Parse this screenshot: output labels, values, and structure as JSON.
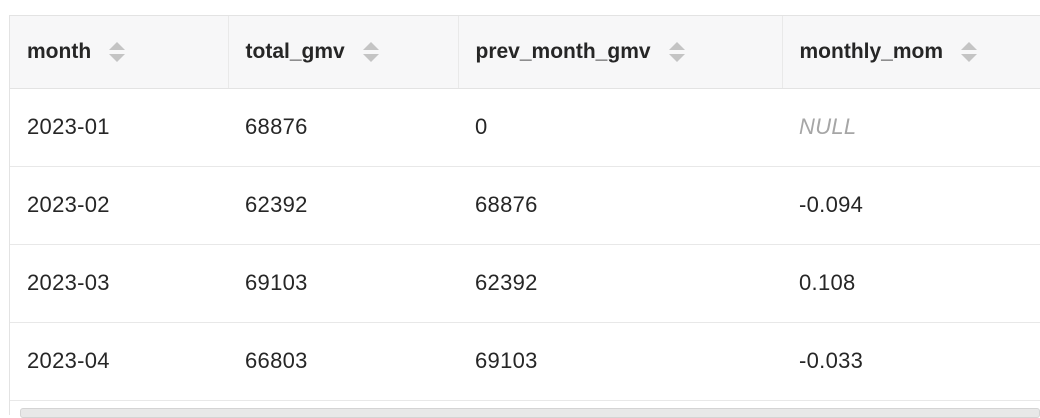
{
  "table": {
    "columns": [
      {
        "key": "month",
        "label": "month"
      },
      {
        "key": "total_gmv",
        "label": "total_gmv"
      },
      {
        "key": "prev_month_gmv",
        "label": "prev_month_gmv"
      },
      {
        "key": "monthly_mom",
        "label": "monthly_mom"
      }
    ],
    "rows": [
      {
        "month": "2023-01",
        "total_gmv": "68876",
        "prev_month_gmv": "0",
        "monthly_mom": "NULL"
      },
      {
        "month": "2023-02",
        "total_gmv": "62392",
        "prev_month_gmv": "68876",
        "monthly_mom": "-0.094"
      },
      {
        "month": "2023-03",
        "total_gmv": "69103",
        "prev_month_gmv": "62392",
        "monthly_mom": "0.108"
      },
      {
        "month": "2023-04",
        "total_gmv": "66803",
        "prev_month_gmv": "69103",
        "monthly_mom": "-0.033"
      }
    ],
    "null_text": "NULL"
  },
  "icons": {
    "sort": "sort-icon"
  },
  "colors": {
    "header_bg": "#f7f7f8",
    "text": "#262626",
    "null_text": "#a6a6a6",
    "border": "#e3e3e3",
    "sort_icon": "#c4c4c4"
  }
}
